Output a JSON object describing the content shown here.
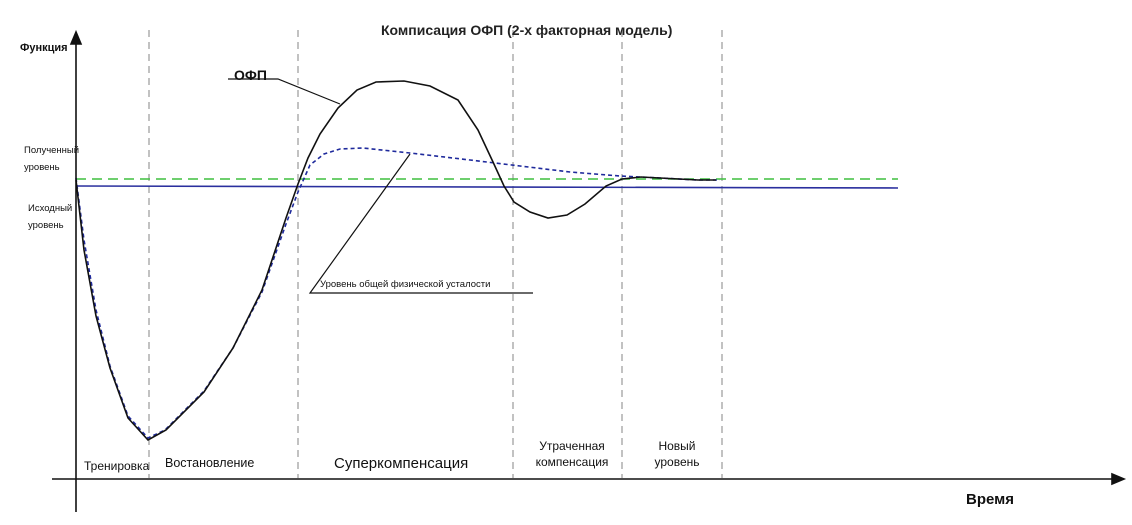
{
  "title": "Комписация ОФП (2-х факторная модель)",
  "y_axis_label": "Функция",
  "x_axis_label": "Время",
  "levels": {
    "obtained": [
      "Полученный",
      "уровень"
    ],
    "initial": [
      "Исходный",
      "уровень"
    ]
  },
  "curves": {
    "ofp_label": "ОФП",
    "fatigue_label": "Уровень общей физической усталости"
  },
  "phases": {
    "training": "Тренировка",
    "recovery": "Востановление",
    "supercompensation": "Суперкомпенсация",
    "lost_compensation": [
      "Утраченная",
      "компенсация"
    ],
    "new_level": [
      "Новый",
      "уровень"
    ]
  },
  "colors": {
    "ofp_curve": "#111111",
    "fatigue_curve": "#1f2a9c",
    "initial_level": "#2a2f9e",
    "obtained_level": "#3fbf3f",
    "phase_dividers": "#999999",
    "axes": "#111111"
  }
}
